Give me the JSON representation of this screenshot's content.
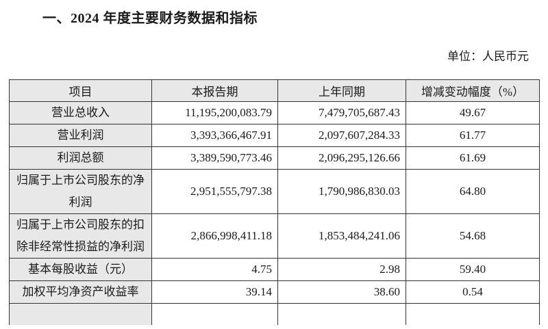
{
  "title": "一、2024 年度主要财务数据和指标",
  "unit": "单位：人民币元",
  "table": {
    "headers": [
      "项目",
      "本报告期",
      "上年同期",
      "增减变动幅度（%）"
    ],
    "rows": [
      {
        "item": "营业总收入",
        "current": "11,195,200,083.79",
        "prior": "7,479,705,687.43",
        "change": "49.67"
      },
      {
        "item": "营业利润",
        "current": "3,393,366,467.91",
        "prior": "2,097,607,284.33",
        "change": "61.77"
      },
      {
        "item": "利润总额",
        "current": "3,389,590,773.46",
        "prior": "2,096,295,126.66",
        "change": "61.69"
      },
      {
        "item": "归属于上市公司股东的净利润",
        "current": "2,951,555,797.38",
        "prior": "1,790,986,830.03",
        "change": "64.80"
      },
      {
        "item": "归属于上市公司股东的扣除非经常性损益的净利润",
        "current": "2,866,998,411.18",
        "prior": "1,853,484,241.06",
        "change": "54.68"
      },
      {
        "item": "基本每股收益（元）",
        "current": "4.75",
        "prior": "2.98",
        "change": "59.40"
      },
      {
        "item": "加权平均净资产收益率",
        "current": "39.14",
        "prior": "38.60",
        "change": "0.54"
      }
    ]
  }
}
